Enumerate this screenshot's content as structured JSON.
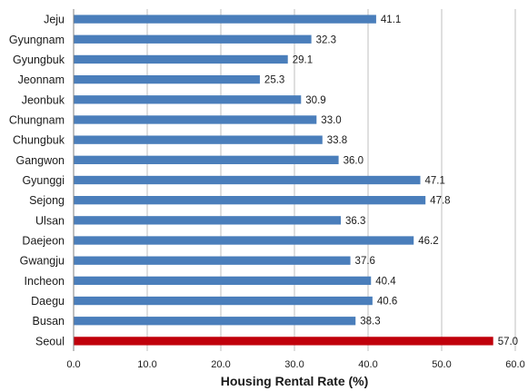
{
  "chart_data": {
    "type": "bar",
    "orientation": "horizontal",
    "categories": [
      "Jeju",
      "Gyungnam",
      "Gyungbuk",
      "Jeonnam",
      "Jeonbuk",
      "Chungnam",
      "Chungbuk",
      "Gangwon",
      "Gyunggi",
      "Sejong",
      "Ulsan",
      "Daejeon",
      "Gwangju",
      "Incheon",
      "Daegu",
      "Busan",
      "Seoul"
    ],
    "values": [
      41.1,
      32.3,
      29.1,
      25.3,
      30.9,
      33.0,
      33.8,
      36.0,
      47.1,
      47.8,
      36.3,
      46.2,
      37.6,
      40.4,
      40.6,
      38.3,
      57.0
    ],
    "value_labels": [
      "41.1",
      "32.3",
      "29.1",
      "25.3",
      "30.9",
      "33.0",
      "33.8",
      "36.0",
      "47.1",
      "47.8",
      "36.3",
      "46.2",
      "37.6",
      "40.4",
      "40.6",
      "38.3",
      "57.0"
    ],
    "highlight_category": "Seoul",
    "xlabel": "Housing Rental Rate (%)",
    "ylabel": "",
    "title": "",
    "xlim": [
      0,
      60
    ],
    "x_ticks": [
      0,
      10,
      20,
      30,
      40,
      50,
      60
    ],
    "x_tick_labels": [
      "0.0",
      "10.0",
      "20.0",
      "30.0",
      "40.0",
      "50.0",
      "60.0"
    ],
    "grid": "vertical",
    "colors": {
      "bar": "#4a7ebb",
      "highlight": "#c0000b",
      "grid": "#bfbfbf"
    }
  }
}
